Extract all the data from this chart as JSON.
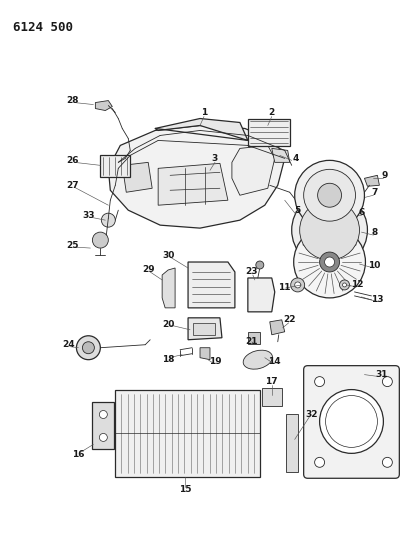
{
  "title": "6124 500",
  "bg_color": "#ffffff",
  "line_color": "#2a2a2a",
  "label_color": "#1a1a1a",
  "fig_width": 4.08,
  "fig_height": 5.33,
  "dpi": 100
}
